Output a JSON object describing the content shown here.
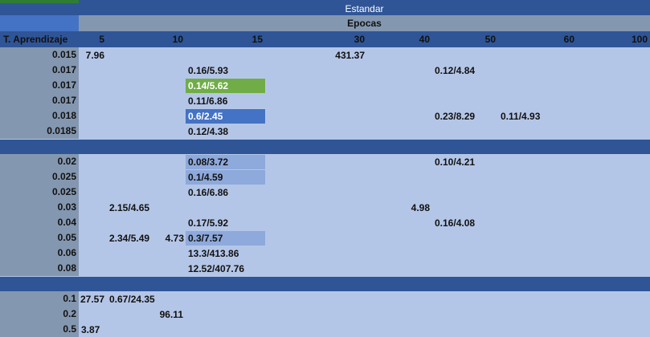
{
  "title": "Estandar",
  "subtitle": "Epocas",
  "row_header_label": "T. Aprendizaje",
  "epochs": [
    "5",
    "10",
    "15",
    "30",
    "40",
    "50",
    "60",
    "100"
  ],
  "colors": {
    "cell_bg": "#b4c6e7",
    "row_label_bg": "#8497b0",
    "header_bg": "#2f5597",
    "subheader_bg": "#8497b0",
    "highlight_green": "#70ad47",
    "highlight_blue": "#4472c4",
    "highlight_light": "#8ea9db"
  },
  "groups": [
    {
      "rows": [
        {
          "rate": "0.015",
          "cells": [
            {
              "col": "5",
              "text": "7.96",
              "align": "right"
            },
            {
              "col": "30",
              "text": "431.37",
              "align": "right",
              "offset": 1
            }
          ]
        },
        {
          "rate": "0.017",
          "cells": [
            {
              "col": "15",
              "text": "0.16/5.93",
              "align": "left"
            },
            {
              "col": "50",
              "text": "0.12/4.84",
              "align": "left"
            }
          ]
        },
        {
          "rate": "0.017",
          "cells": [
            {
              "col": "15",
              "text": "0.14/5.62",
              "align": "left",
              "highlight": "green"
            }
          ]
        },
        {
          "rate": "0.017",
          "cells": [
            {
              "col": "15",
              "text": "0.11/6.86",
              "align": "left"
            }
          ]
        },
        {
          "rate": "0.018",
          "cells": [
            {
              "col": "15",
              "text": "0.6/2.45",
              "align": "left",
              "highlight": "blue"
            },
            {
              "col": "50",
              "text": "0.23/8.29",
              "align": "left"
            },
            {
              "col": "60",
              "text": "0.11/4.93",
              "align": "left"
            }
          ]
        },
        {
          "rate": "0.0185",
          "cells": [
            {
              "col": "15",
              "text": "0.12/4.38",
              "align": "left"
            }
          ]
        }
      ]
    },
    {
      "rows": [
        {
          "rate": "0.02",
          "cells": [
            {
              "col": "15",
              "text": "0.08/3.72",
              "align": "left",
              "highlight": "light"
            },
            {
              "col": "50",
              "text": "0.10/4.21",
              "align": "left"
            }
          ]
        },
        {
          "rate": "0.025",
          "cells": [
            {
              "col": "15",
              "text": "0.1/4.59",
              "align": "left",
              "highlight": "light"
            }
          ]
        },
        {
          "rate": "0.025",
          "cells": [
            {
              "col": "15",
              "text": "0.16/6.86",
              "align": "left"
            }
          ]
        },
        {
          "rate": "0.03",
          "cells": [
            {
              "col": "10",
              "text": "2.15/4.65",
              "align": "left"
            },
            {
              "col": "40",
              "text": "4.98",
              "align": "right"
            }
          ]
        },
        {
          "rate": "0.04",
          "cells": [
            {
              "col": "15",
              "text": "0.17/5.92",
              "align": "left"
            },
            {
              "col": "50",
              "text": "0.16/4.08",
              "align": "left"
            }
          ]
        },
        {
          "rate": "0.05",
          "cells": [
            {
              "col": "5",
              "text": "4.73",
              "align": "right",
              "offset": 1
            },
            {
              "col": "10",
              "text": "2.34/5.49",
              "align": "left"
            },
            {
              "col": "15",
              "text": "0.3/7.57",
              "align": "left",
              "highlight": "light"
            }
          ]
        },
        {
          "rate": "0.06",
          "cells": [
            {
              "col": "15",
              "text": "13.3/413.86",
              "align": "left"
            }
          ]
        },
        {
          "rate": "0.08",
          "cells": [
            {
              "col": "15",
              "text": "12.52/407.76",
              "align": "left"
            }
          ]
        }
      ]
    },
    {
      "rows": [
        {
          "rate": "0.1",
          "cells": [
            {
              "col": "5",
              "text": "27.57",
              "align": "right"
            },
            {
              "col": "10",
              "text": "0.67/24.35",
              "align": "left"
            }
          ]
        },
        {
          "rate": "0.2",
          "cells": [
            {
              "col": "10",
              "text": "96.11",
              "align": "right",
              "offset": 1
            }
          ]
        },
        {
          "rate": "0.5",
          "cells": [
            {
              "col": "5",
              "text": "3.87",
              "align": "left"
            }
          ]
        }
      ]
    }
  ]
}
